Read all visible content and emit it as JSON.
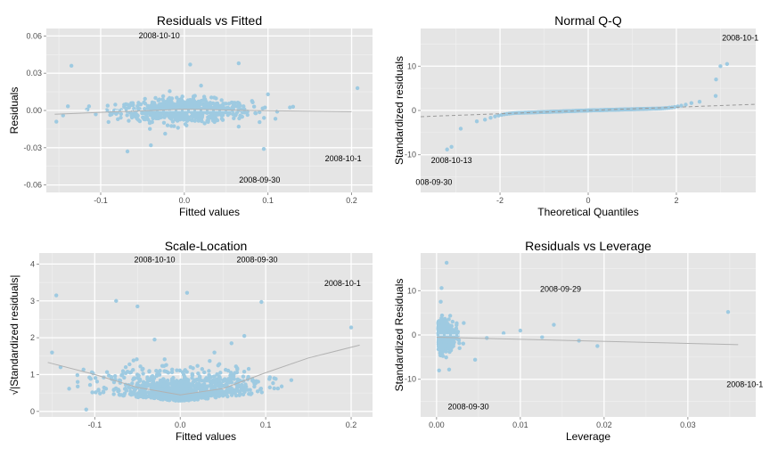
{
  "chart_data": [
    {
      "id": "rvf",
      "type": "scatter",
      "title": "Residuals vs Fitted",
      "xlabel": "Fitted values",
      "ylabel": "Residuals",
      "xlim": [
        -0.165,
        0.225
      ],
      "ylim": [
        -0.066,
        0.066
      ],
      "xticks": [
        -0.1,
        0.0,
        0.1,
        0.2
      ],
      "xtick_labels": [
        "-0.1",
        "0.0",
        "0.1",
        "0.2"
      ],
      "yticks": [
        -0.06,
        -0.03,
        0.0,
        0.03,
        0.06
      ],
      "ytick_labels": [
        "-0.06",
        "-0.03",
        "0.00",
        "0.03",
        "0.06"
      ],
      "grid": true,
      "ref_line": {
        "axis": "y",
        "value": 0,
        "style": "dashed"
      },
      "smooth": [
        [
          -0.155,
          -0.003
        ],
        [
          -0.08,
          -0.001
        ],
        [
          0.0,
          0.001
        ],
        [
          0.08,
          0.0
        ],
        [
          0.2,
          -0.001
        ]
      ],
      "outliers": [
        [
          -0.135,
          0.036
        ],
        [
          0.007,
          0.037
        ],
        [
          0.207,
          0.018
        ],
        [
          0.065,
          0.038
        ],
        [
          -0.072,
          0.003
        ],
        [
          -0.04,
          -0.028
        ],
        [
          0.095,
          -0.031
        ],
        [
          -0.068,
          -0.033
        ],
        [
          0.065,
          -0.013
        ],
        [
          0.13,
          0.003
        ],
        [
          -0.153,
          -0.009
        ],
        [
          -0.145,
          -0.004
        ],
        [
          0.1,
          0.013
        ],
        [
          0.02,
          0.02
        ],
        [
          -0.02,
          -0.012
        ]
      ],
      "cluster": {
        "cx": 0.0,
        "sx": 0.04,
        "sy": 0.005,
        "n": 700
      },
      "annotations": [
        {
          "text": "2008-10-10",
          "x": -0.03,
          "y": 0.058
        },
        {
          "text": "2008-10-1",
          "x": 0.19,
          "y": -0.041
        },
        {
          "text": "2008-09-30",
          "x": 0.09,
          "y": -0.058
        }
      ]
    },
    {
      "id": "qq",
      "type": "scatter",
      "title": "Normal Q-Q",
      "xlabel": "Theoretical Quantiles",
      "ylabel": "Standardized residuals",
      "xlim": [
        -3.8,
        3.8
      ],
      "ylim": [
        -18.5,
        18.5
      ],
      "xticks": [
        -2,
        0,
        2
      ],
      "xtick_labels": [
        "-2",
        "0",
        "2"
      ],
      "yticks": [
        -10,
        0,
        10
      ],
      "ytick_labels": [
        "-10",
        "0",
        "10"
      ],
      "grid": true,
      "ref_line": {
        "from": [
          -3.8,
          -1.4
        ],
        "to": [
          3.8,
          1.4
        ],
        "style": "dashed"
      },
      "qq_line": {
        "xmin": -3.45,
        "xmax": 3.45
      },
      "annotations": [
        {
          "text": "2008-10-1",
          "x": 3.45,
          "y": 15.8
        },
        {
          "text": "2008-10-13",
          "x": -3.1,
          "y": -11.9
        },
        {
          "text": "008-09-30",
          "x": -3.5,
          "y": -16.8
        }
      ]
    },
    {
      "id": "sl",
      "type": "scatter",
      "title": "Scale-Location",
      "xlabel": "Fitted values",
      "ylabel": "√|Standardized residuals|",
      "xlim": [
        -0.165,
        0.225
      ],
      "ylim": [
        -0.15,
        4.3
      ],
      "xticks": [
        -0.1,
        0.0,
        0.1,
        0.2
      ],
      "xtick_labels": [
        "-0.1",
        "0.0",
        "0.1",
        "0.2"
      ],
      "yticks": [
        0,
        1,
        2,
        3,
        4
      ],
      "ytick_labels": [
        "0",
        "1",
        "2",
        "3",
        "4"
      ],
      "grid": true,
      "smooth": [
        [
          -0.155,
          1.33
        ],
        [
          -0.1,
          1.0
        ],
        [
          -0.05,
          0.65
        ],
        [
          0.0,
          0.45
        ],
        [
          0.05,
          0.62
        ],
        [
          0.1,
          1.05
        ],
        [
          0.15,
          1.45
        ],
        [
          0.21,
          1.8
        ]
      ],
      "outliers": [
        [
          -0.145,
          3.15
        ],
        [
          -0.075,
          3.0
        ],
        [
          0.008,
          3.22
        ],
        [
          0.095,
          2.97
        ],
        [
          0.2,
          2.28
        ],
        [
          -0.05,
          2.85
        ],
        [
          0.075,
          2.05
        ],
        [
          -0.15,
          1.6
        ],
        [
          0.04,
          1.6
        ],
        [
          0.11,
          0.9
        ],
        [
          -0.12,
          0.8
        ],
        [
          -0.11,
          0.05
        ],
        [
          0.13,
          0.85
        ],
        [
          0.06,
          1.85
        ],
        [
          -0.03,
          1.95
        ],
        [
          -0.14,
          1.2
        ]
      ],
      "cluster": {
        "cx": 0.0,
        "sx": 0.04,
        "n": 900
      },
      "annotations": [
        {
          "text": "2008-10-10",
          "x": -0.03,
          "y": 4.05
        },
        {
          "text": "2008-09-30",
          "x": 0.09,
          "y": 4.05
        },
        {
          "text": "2008-10-1",
          "x": 0.19,
          "y": 3.4
        }
      ]
    },
    {
      "id": "rvl",
      "type": "scatter",
      "title": "Residuals vs Leverage",
      "xlabel": "Leverage",
      "ylabel": "Standardized Residuals",
      "xlim": [
        -0.0019,
        0.0381
      ],
      "ylim": [
        -18.5,
        18.5
      ],
      "xticks": [
        0.0,
        0.01,
        0.02,
        0.03
      ],
      "xtick_labels": [
        "0.00",
        "0.01",
        "0.02",
        "0.03"
      ],
      "yticks": [
        -10,
        0,
        10
      ],
      "ytick_labels": [
        "-10",
        "0",
        "10"
      ],
      "grid": true,
      "ref_line": {
        "axis": "y",
        "value": 0,
        "style": "dashed"
      },
      "smooth": [
        [
          0.0,
          -0.5
        ],
        [
          0.036,
          -2.2
        ]
      ],
      "outliers": [
        [
          0.0012,
          16.3
        ],
        [
          0.0006,
          10.6
        ],
        [
          0.0348,
          5.2
        ],
        [
          0.014,
          2.3
        ],
        [
          0.017,
          -1.3
        ],
        [
          0.0192,
          -2.5
        ],
        [
          0.0126,
          -0.5
        ],
        [
          0.008,
          0.4
        ],
        [
          0.006,
          -0.7
        ],
        [
          0.0046,
          -5.6
        ],
        [
          0.0003,
          -8.0
        ],
        [
          0.0005,
          7.5
        ],
        [
          0.0015,
          -7.8
        ],
        [
          0.01,
          1.0
        ]
      ],
      "cluster": {
        "cx": 0.0011,
        "sx": 0.0009,
        "sy": 1.9,
        "n": 500
      },
      "annotations": [
        {
          "text": "2008-09-29",
          "x": 0.0148,
          "y": 9.8
        },
        {
          "text": "2008-10-1",
          "x": 0.0368,
          "y": -11.8
        },
        {
          "text": "2008-09-30",
          "x": 0.0038,
          "y": -16.8
        }
      ]
    }
  ]
}
